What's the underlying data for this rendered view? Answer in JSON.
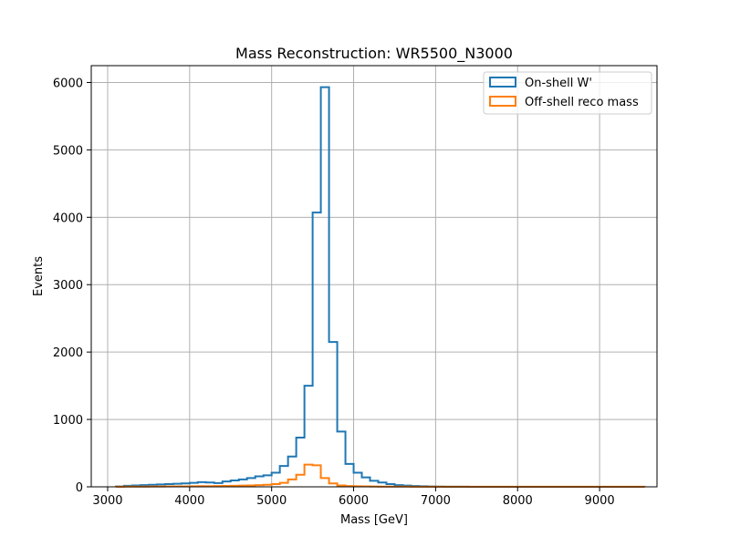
{
  "chart_data": {
    "type": "histogram",
    "title": "Mass Reconstruction: WR5500_N3000",
    "xlabel": "Mass [GeV]",
    "ylabel": "Events",
    "xlim": [
      2800,
      9700
    ],
    "ylim": [
      0,
      6250
    ],
    "x_ticks": [
      3000,
      4000,
      5000,
      6000,
      7000,
      8000,
      9000
    ],
    "y_ticks": [
      0,
      1000,
      2000,
      3000,
      4000,
      5000,
      6000
    ],
    "grid": true,
    "legend_position": "top-right",
    "bin_edges": [
      3100,
      3200,
      3300,
      3400,
      3500,
      3600,
      3700,
      3800,
      3900,
      4000,
      4100,
      4200,
      4300,
      4400,
      4500,
      4600,
      4700,
      4800,
      4900,
      5000,
      5100,
      5200,
      5300,
      5400,
      5500,
      5600,
      5700,
      5800,
      5900,
      6000,
      6100,
      6200,
      6300,
      6400,
      6500,
      6600,
      6700,
      6800,
      6900,
      7000,
      7100,
      7200,
      7300,
      7400,
      7500,
      7600,
      7700,
      7800,
      7900,
      8000,
      8100,
      8200,
      8300,
      8400,
      8500,
      8600,
      8700,
      8800,
      8900,
      9000,
      9100,
      9200,
      9300,
      9400,
      9500,
      9550
    ],
    "series": [
      {
        "name": "On-shell W'",
        "color": "#1f77b4",
        "counts": [
          5,
          15,
          20,
          25,
          30,
          35,
          40,
          45,
          50,
          60,
          70,
          65,
          55,
          80,
          95,
          110,
          130,
          155,
          170,
          210,
          310,
          450,
          730,
          1500,
          4070,
          5930,
          2150,
          820,
          340,
          210,
          140,
          90,
          65,
          40,
          25,
          18,
          12,
          8,
          5,
          3,
          2,
          1,
          1,
          0,
          0,
          0,
          0,
          0,
          0,
          0,
          0,
          0,
          0,
          0,
          0,
          0,
          0,
          0,
          0,
          0,
          0,
          0,
          0,
          0,
          0
        ]
      },
      {
        "name": "Off-shell reco mass",
        "color": "#ff7f0e",
        "counts": [
          2,
          3,
          3,
          4,
          5,
          5,
          6,
          6,
          7,
          8,
          10,
          10,
          12,
          14,
          15,
          18,
          20,
          25,
          30,
          40,
          60,
          110,
          180,
          330,
          320,
          130,
          50,
          20,
          12,
          8,
          6,
          5,
          4,
          3,
          3,
          3,
          2,
          2,
          2,
          2,
          2,
          2,
          2,
          2,
          2,
          2,
          2,
          2,
          2,
          2,
          2,
          2,
          2,
          2,
          2,
          2,
          2,
          2,
          2,
          2,
          2,
          2,
          2,
          2,
          2
        ]
      }
    ]
  }
}
